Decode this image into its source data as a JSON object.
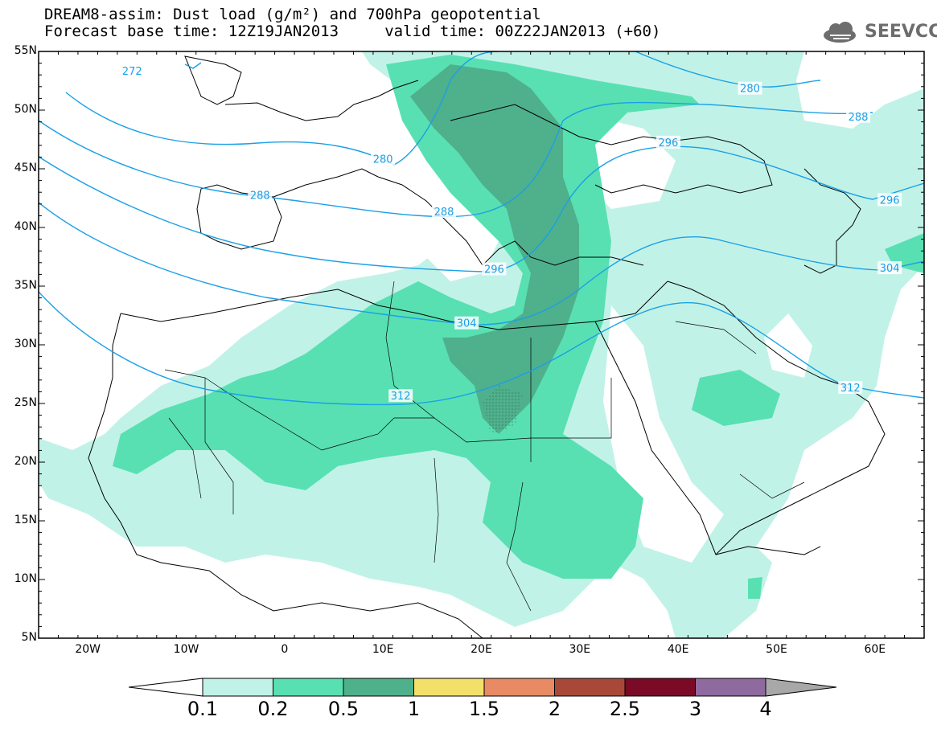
{
  "title": {
    "line1": "DREAM8-assim: Dust load (g/m²) and 700hPa geopotential",
    "line2": "Forecast base time: 12Z19JAN2013     valid time: 00Z22JAN2013 (+60)"
  },
  "logo": {
    "text": "SEEVCCC",
    "icon": "cloud-icon"
  },
  "map": {
    "lon_range": [
      -25,
      65
    ],
    "lat_range": [
      5,
      55
    ],
    "lat_labels": [
      "55N",
      "50N",
      "45N",
      "40N",
      "35N",
      "30N",
      "25N",
      "20N",
      "15N",
      "10N",
      "5N"
    ],
    "lon_labels": [
      "20W",
      "10W",
      "0",
      "10E",
      "20E",
      "30E",
      "40E",
      "50E",
      "60E"
    ]
  },
  "contour_labels": [
    {
      "text": "272",
      "lon": -15.5,
      "lat": 53.3
    },
    {
      "text": "280",
      "lon": 47.3,
      "lat": 51.8
    },
    {
      "text": "288",
      "lon": 58.3,
      "lat": 49.4
    },
    {
      "text": "280",
      "lon": 10,
      "lat": 45.8
    },
    {
      "text": "296",
      "lon": 39,
      "lat": 47.2
    },
    {
      "text": "288",
      "lon": -2.5,
      "lat": 42.7
    },
    {
      "text": "288",
      "lon": 16.2,
      "lat": 41.3
    },
    {
      "text": "296",
      "lon": 61.5,
      "lat": 42.3
    },
    {
      "text": "296",
      "lon": 21.3,
      "lat": 36.4
    },
    {
      "text": "304",
      "lon": 61.5,
      "lat": 36.5
    },
    {
      "text": "304",
      "lon": 18.5,
      "lat": 31.8
    },
    {
      "text": "312",
      "lon": 57.5,
      "lat": 26.3
    },
    {
      "text": "312",
      "lon": 11.8,
      "lat": 25.6
    }
  ],
  "colorbar": {
    "labels": [
      "0.1",
      "0.2",
      "0.5",
      "1",
      "1.5",
      "2",
      "2.5",
      "3",
      "4"
    ],
    "colors": [
      "#c1f2e8",
      "#58e0b2",
      "#4fb08c",
      "#f2e06a",
      "#e88a63",
      "#a84839",
      "#7a0a26",
      "#8e6a9e"
    ],
    "low_color": "#ffffff",
    "high_color": "#a8a8a8"
  },
  "colors": {
    "contour": "#1aa0e6",
    "coast": "#000000"
  }
}
